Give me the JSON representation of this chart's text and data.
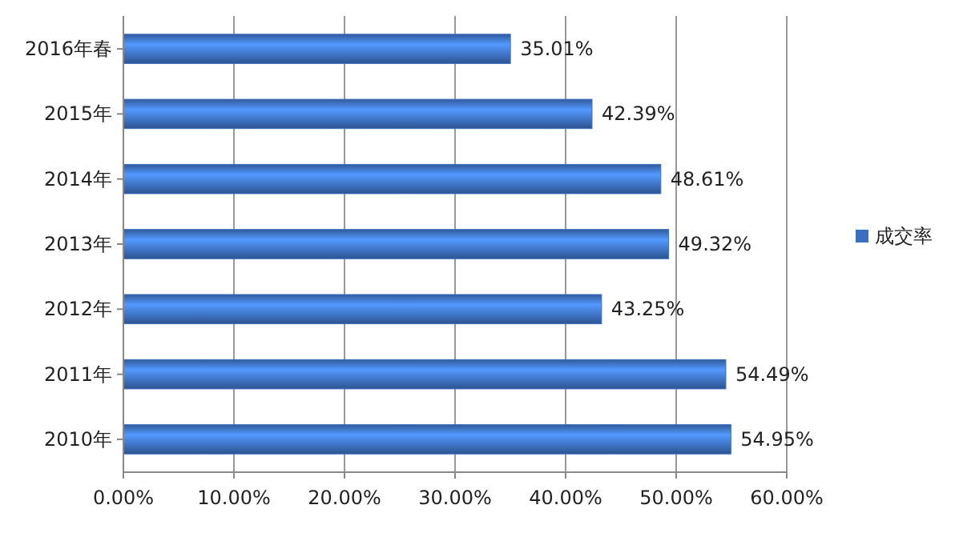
{
  "chart_data": {
    "type": "bar",
    "orientation": "horizontal",
    "categories": [
      "2016年春",
      "2015年",
      "2014年",
      "2013年",
      "2012年",
      "2011年",
      "2010年"
    ],
    "series": [
      {
        "name": "成交率",
        "color": "#3c6fc0",
        "values": [
          35.01,
          42.39,
          48.61,
          49.32,
          43.25,
          54.49,
          54.95
        ],
        "value_labels": [
          "35.01%",
          "42.39%",
          "48.61%",
          "49.32%",
          "43.25%",
          "54.49%",
          "54.95%"
        ]
      }
    ],
    "xlim": [
      0,
      60
    ],
    "xticks": [
      {
        "value": 0,
        "label": "0.00%"
      },
      {
        "value": 10,
        "label": "10.00%"
      },
      {
        "value": 20,
        "label": "20.00%"
      },
      {
        "value": 30,
        "label": "30.00%"
      },
      {
        "value": 40,
        "label": "40.00%"
      },
      {
        "value": 50,
        "label": "50.00%"
      },
      {
        "value": 60,
        "label": "60.00%"
      }
    ],
    "grid": "x",
    "legend": "right"
  }
}
